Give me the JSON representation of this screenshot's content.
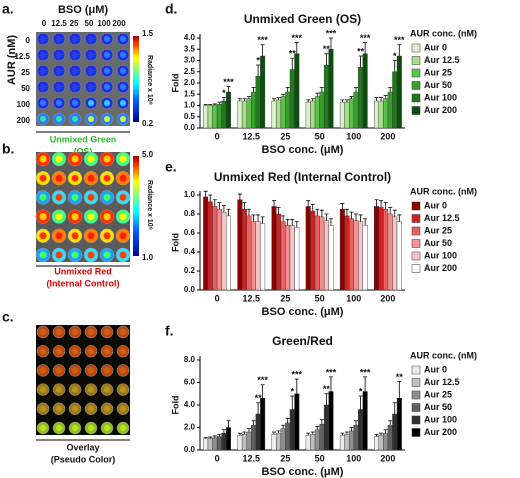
{
  "panels": {
    "a": {
      "label": "a.",
      "x_title": "BSO (μM)",
      "columns": [
        "0",
        "12.5",
        "25",
        "50",
        "100",
        "200"
      ],
      "y_title": "AUR (nM)",
      "rows": [
        "0",
        "12.5",
        "25",
        "50",
        "100",
        "200"
      ],
      "colorbar_title": "Radiance x 10⁸",
      "colorbar_max": "1.5",
      "colorbar_min": "0.2",
      "caption": "Unmixed Green",
      "caption2": "(OS)"
    },
    "b": {
      "label": "b.",
      "colorbar_title": "Radiance x 10⁸",
      "colorbar_max": "5.0",
      "colorbar_min": "1.0",
      "caption": "Unmixed Red",
      "caption2": "(Internal Control)"
    },
    "c": {
      "label": "c.",
      "caption": "Overlay",
      "caption2": "(Pseudo Color)"
    }
  },
  "chart_data": [
    {
      "type": "bar",
      "label": "d.",
      "title": "Unmixed Green (OS)",
      "x_label": "BSO conc. (μM)",
      "y_label": "Fold",
      "legend_title": "AUR conc. (nM)",
      "legend": "right",
      "categories": [
        "0",
        "12.5",
        "25",
        "50",
        "100",
        "200"
      ],
      "ylim": [
        0,
        4
      ],
      "yticks": [
        {
          "value": 0,
          "label": "0.0"
        },
        {
          "value": 0.5,
          "label": "0.5"
        },
        {
          "value": 1,
          "label": "1.0"
        },
        {
          "value": 1.5,
          "label": "1.5"
        },
        {
          "value": 2,
          "label": "2.0"
        },
        {
          "value": 2.5,
          "label": "2.5"
        },
        {
          "value": 3,
          "label": "3.0"
        },
        {
          "value": 3.5,
          "label": "3.5"
        },
        {
          "value": 4,
          "label": "4.0"
        }
      ],
      "series": [
        {
          "name": "Aur 0",
          "color": "#d9f0c8",
          "values": [
            1.0,
            1.2,
            1.2,
            1.15,
            1.15,
            1.2
          ],
          "errors": [
            0.05,
            0.1,
            0.1,
            0.1,
            0.1,
            0.15
          ],
          "significance": [
            null,
            null,
            null,
            null,
            null,
            null
          ]
        },
        {
          "name": "Aur 12.5",
          "color": "#a8e08a",
          "values": [
            1.0,
            1.2,
            1.25,
            1.2,
            1.15,
            1.2
          ],
          "errors": [
            0.05,
            0.1,
            0.1,
            0.1,
            0.1,
            0.15
          ],
          "significance": [
            null,
            null,
            null,
            null,
            null,
            null
          ]
        },
        {
          "name": "Aur 25",
          "color": "#5cc24a",
          "values": [
            1.02,
            1.3,
            1.4,
            1.4,
            1.3,
            1.3
          ],
          "errors": [
            0.05,
            0.1,
            0.1,
            0.15,
            0.1,
            0.15
          ],
          "significance": [
            null,
            null,
            null,
            null,
            null,
            null
          ]
        },
        {
          "name": "Aur 50",
          "color": "#3a9e2e",
          "values": [
            1.05,
            1.6,
            1.6,
            1.6,
            1.6,
            1.6
          ],
          "errors": [
            0.1,
            0.2,
            0.2,
            0.2,
            0.2,
            0.2
          ],
          "significance": [
            null,
            null,
            null,
            null,
            null,
            null
          ]
        },
        {
          "name": "Aur 100",
          "color": "#1f7a1a",
          "values": [
            1.2,
            2.3,
            2.6,
            2.8,
            2.7,
            2.5
          ],
          "errors": [
            0.15,
            0.5,
            0.5,
            0.5,
            0.5,
            0.5
          ],
          "significance": [
            "*",
            "*",
            "**",
            "**",
            "**",
            "*"
          ]
        },
        {
          "name": "Aur 200",
          "color": "#0d4d0d",
          "values": [
            1.6,
            3.2,
            3.3,
            3.5,
            3.3,
            3.2
          ],
          "errors": [
            0.25,
            0.5,
            0.5,
            0.5,
            0.5,
            0.5
          ],
          "significance": [
            "***",
            "***",
            "***",
            "***",
            "***",
            "***"
          ]
        }
      ]
    },
    {
      "type": "bar",
      "label": "e.",
      "title": "Unmixed Red (Internal Control)",
      "x_label": "BSO conc. (μM)",
      "y_label": "Fold",
      "legend_title": "AUR conc. (nM)",
      "legend": "right",
      "categories": [
        "0",
        "12.5",
        "25",
        "50",
        "100",
        "200"
      ],
      "ylim": [
        0,
        1
      ],
      "yticks": [
        {
          "value": 0,
          "label": "0.0"
        },
        {
          "value": 0.2,
          "label": "0.2"
        },
        {
          "value": 0.4,
          "label": "0.4"
        },
        {
          "value": 0.6,
          "label": "0.6"
        },
        {
          "value": 0.8,
          "label": "0.8"
        },
        {
          "value": 1,
          "label": "1.0"
        }
      ],
      "series": [
        {
          "name": "Aur 0",
          "color": "#8b0000",
          "values": [
            0.98,
            0.95,
            0.88,
            0.88,
            0.85,
            0.88
          ],
          "errors": [
            0.06,
            0.06,
            0.06,
            0.06,
            0.06,
            0.07
          ]
        },
        {
          "name": "Aur 12.5",
          "color": "#d42020",
          "values": [
            0.93,
            0.85,
            0.8,
            0.83,
            0.78,
            0.87
          ],
          "errors": [
            0.07,
            0.07,
            0.07,
            0.07,
            0.07,
            0.07
          ]
        },
        {
          "name": "Aur 25",
          "color": "#e86060",
          "values": [
            0.88,
            0.78,
            0.72,
            0.78,
            0.75,
            0.85
          ],
          "errors": [
            0.07,
            0.07,
            0.06,
            0.07,
            0.07,
            0.07
          ]
        },
        {
          "name": "Aur 50",
          "color": "#f09090",
          "values": [
            0.85,
            0.72,
            0.68,
            0.77,
            0.73,
            0.8
          ],
          "errors": [
            0.07,
            0.07,
            0.06,
            0.07,
            0.07,
            0.07
          ]
        },
        {
          "name": "Aur 100",
          "color": "#f8c4c4",
          "values": [
            0.82,
            0.72,
            0.68,
            0.73,
            0.72,
            0.77
          ],
          "errors": [
            0.07,
            0.07,
            0.06,
            0.07,
            0.07,
            0.07
          ]
        },
        {
          "name": "Aur 200",
          "color": "#ffffff",
          "values": [
            0.78,
            0.7,
            0.66,
            0.68,
            0.68,
            0.72
          ],
          "errors": [
            0.07,
            0.07,
            0.06,
            0.07,
            0.07,
            0.07
          ]
        }
      ]
    },
    {
      "type": "bar",
      "label": "f.",
      "title": "Green/Red",
      "x_label": "BSO conc. (μM)",
      "y_label": "Fold",
      "legend_title": "AUR conc. (nM)",
      "legend": "right",
      "categories": [
        "0",
        "12.5",
        "25",
        "50",
        "100",
        "200"
      ],
      "ylim": [
        0,
        8
      ],
      "yticks": [
        {
          "value": 0,
          "label": "0.0"
        },
        {
          "value": 2,
          "label": "2.0"
        },
        {
          "value": 4,
          "label": "4.0"
        },
        {
          "value": 6,
          "label": "6.0"
        },
        {
          "value": 8,
          "label": "8.0"
        }
      ],
      "series": [
        {
          "name": "Aur 0",
          "color": "#ececec",
          "values": [
            1.0,
            1.3,
            1.4,
            1.3,
            1.3,
            1.2
          ],
          "errors": [
            0.1,
            0.2,
            0.2,
            0.2,
            0.2,
            0.2
          ],
          "significance": [
            null,
            null,
            null,
            null,
            null,
            null
          ]
        },
        {
          "name": "Aur 12.5",
          "color": "#c0c0c0",
          "values": [
            1.05,
            1.4,
            1.5,
            1.4,
            1.4,
            1.3
          ],
          "errors": [
            0.1,
            0.2,
            0.2,
            0.2,
            0.2,
            0.2
          ],
          "significance": [
            null,
            null,
            null,
            null,
            null,
            null
          ]
        },
        {
          "name": "Aur 25",
          "color": "#909090",
          "values": [
            1.1,
            1.6,
            1.9,
            1.8,
            1.7,
            1.5
          ],
          "errors": [
            0.15,
            0.3,
            0.3,
            0.3,
            0.3,
            0.3
          ],
          "significance": [
            null,
            null,
            null,
            null,
            null,
            null
          ]
        },
        {
          "name": "Aur 50",
          "color": "#606060",
          "values": [
            1.2,
            2.2,
            2.4,
            2.3,
            2.2,
            2.2
          ],
          "errors": [
            0.2,
            0.4,
            0.4,
            0.4,
            0.4,
            0.4
          ],
          "significance": [
            null,
            null,
            null,
            null,
            null,
            null
          ]
        },
        {
          "name": "Aur 100",
          "color": "#303030",
          "values": [
            1.5,
            3.2,
            3.6,
            4.0,
            3.6,
            3.2
          ],
          "errors": [
            0.3,
            1.0,
            1.2,
            1.0,
            1.2,
            1.0
          ],
          "significance": [
            null,
            "**",
            "*",
            "**",
            "*",
            null
          ]
        },
        {
          "name": "Aur 200",
          "color": "#000000",
          "values": [
            2.0,
            4.6,
            5.0,
            5.2,
            5.2,
            4.6
          ],
          "errors": [
            0.6,
            1.2,
            1.3,
            1.3,
            1.3,
            1.5
          ],
          "significance": [
            null,
            "***",
            "***",
            "***",
            "***",
            "**"
          ]
        }
      ]
    }
  ]
}
